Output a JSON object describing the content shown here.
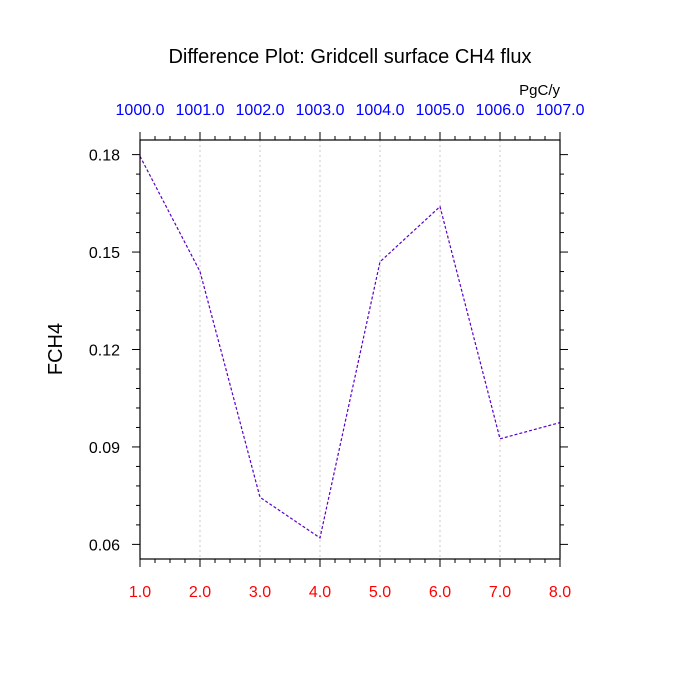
{
  "chart_data": {
    "type": "line",
    "title": "Difference Plot: Gridcell surface CH4 flux",
    "units": "PgC/y",
    "ylabel": "FCH4",
    "xlabel": "",
    "x": [
      1.0,
      2.0,
      3.0,
      4.0,
      5.0,
      6.0,
      7.0,
      8.0
    ],
    "xlim": [
      1.0,
      8.0
    ],
    "ylim": [
      0.0555,
      0.1845
    ],
    "x_tick_labels_bottom": [
      "1.0",
      "2.0",
      "3.0",
      "4.0",
      "5.0",
      "6.0",
      "7.0",
      "8.0"
    ],
    "x_tick_labels_top": [
      "1000.0",
      "1001.0",
      "1002.0",
      "1003.0",
      "1004.0",
      "1005.0",
      "1006.0",
      "1007.0"
    ],
    "y_ticks": [
      0.06,
      0.09,
      0.12,
      0.15,
      0.18
    ],
    "y_tick_labels": [
      "0.06",
      "0.09",
      "0.12",
      "0.15",
      "0.18"
    ],
    "grid": "vertical dotted at x ticks",
    "series": [
      {
        "values": [
          0.1795,
          0.144,
          0.0745,
          0.062,
          0.147,
          0.164,
          0.0925,
          0.0975
        ],
        "color": "#5b00c8",
        "style": "dashed"
      }
    ],
    "colors": {
      "bottom_tick_labels": "#ff0000",
      "top_tick_labels": "#0000ff",
      "axes": "#000000",
      "grid": "#c8c8c8"
    }
  }
}
